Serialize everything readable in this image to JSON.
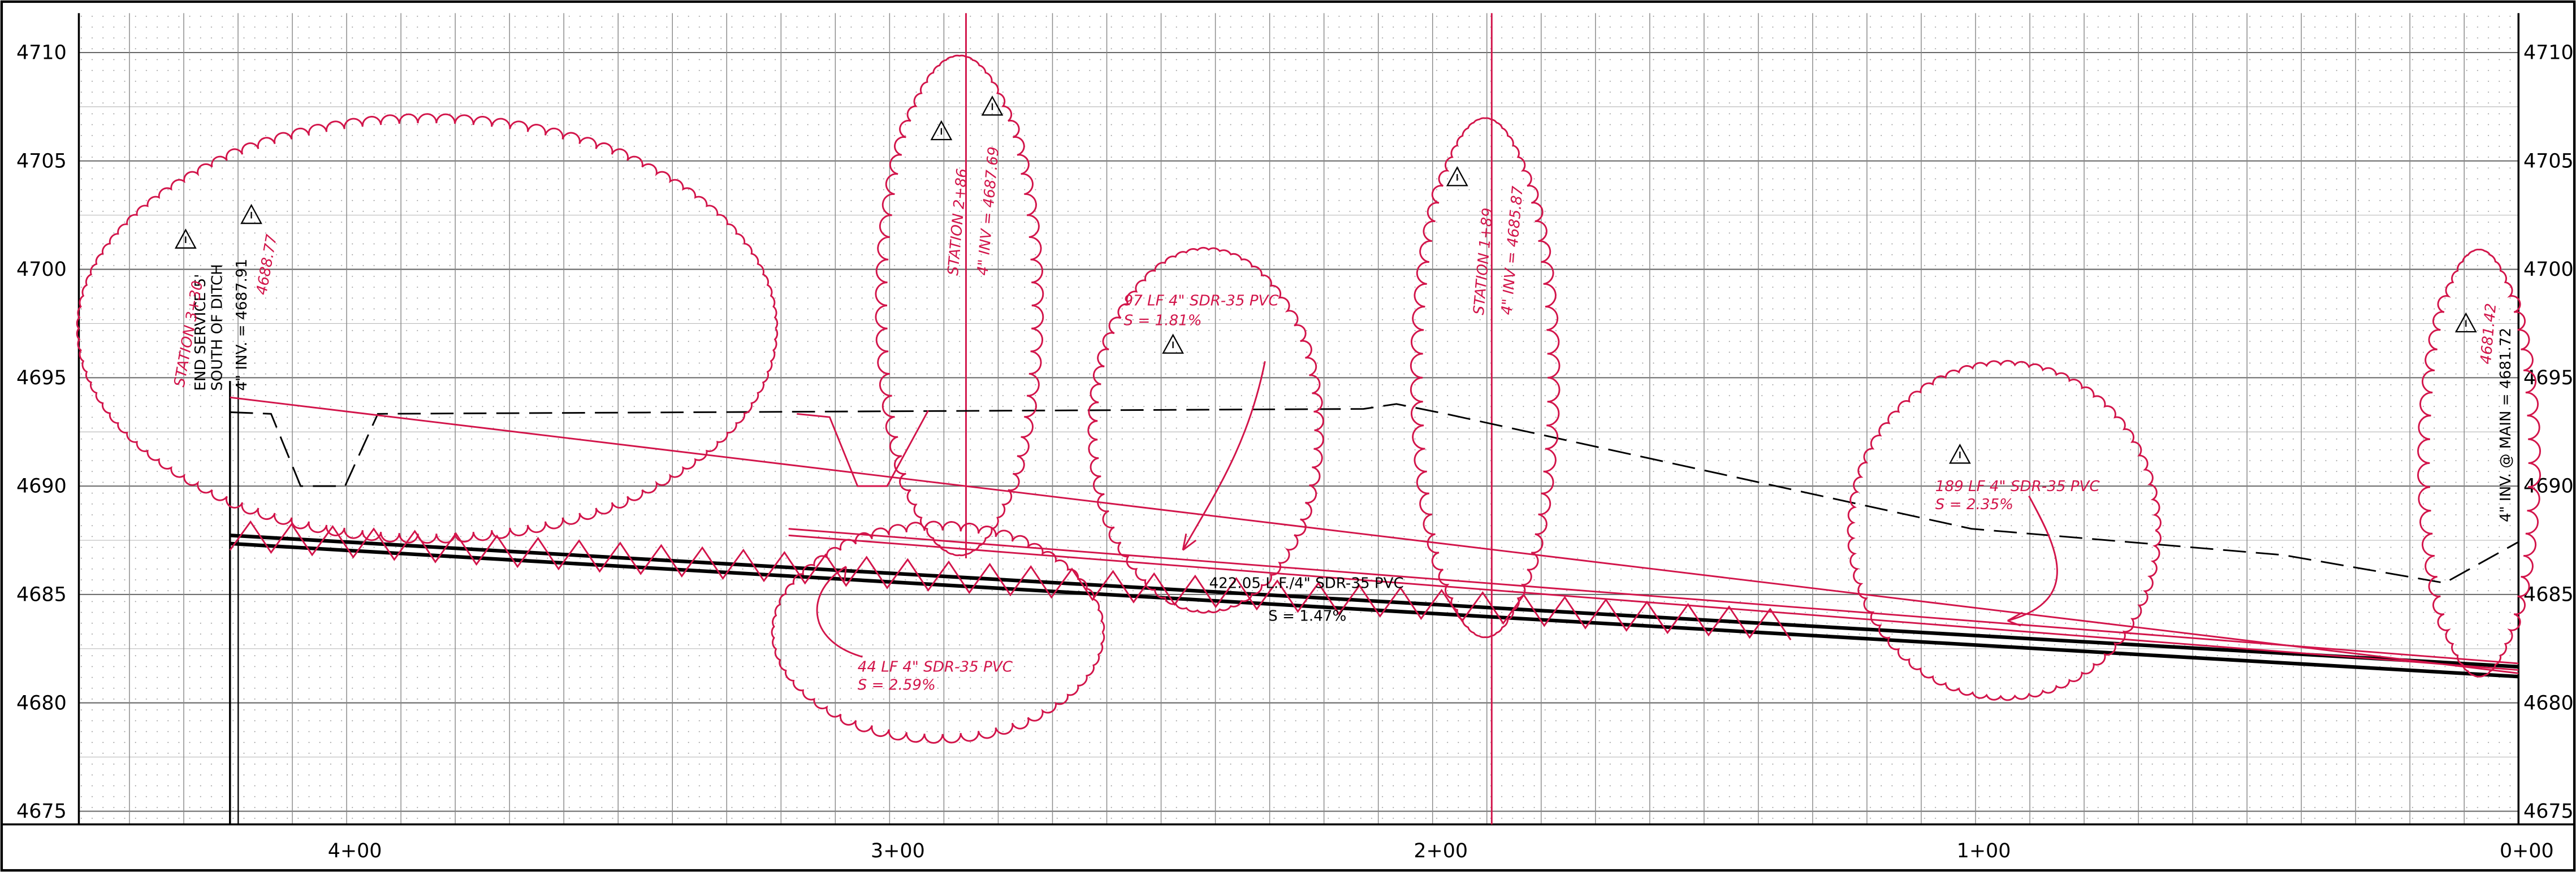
{
  "elevations": [
    4710,
    4705,
    4700,
    4695,
    4690,
    4685,
    4680,
    4675
  ],
  "stations": [
    "4+00",
    "3+00",
    "2+00",
    "1+00",
    "0+00"
  ],
  "annotations": {
    "end_service": [
      "END SERVICE 5'",
      "SOUTH OF DITCH",
      "4\" INV. = 4687.91"
    ],
    "station_330": [
      "STATION 3+30",
      "4688.77"
    ],
    "station_286": [
      "STATION 2+86",
      "4\" INV = 4687.69"
    ],
    "pipe_97": [
      "97 LF 4\" SDR-35 PVC",
      "S = 1.81%"
    ],
    "station_189": [
      "STATION 1+89",
      "4\" INV = 4685.87"
    ],
    "main_pipe": [
      "422.05 L.F./4\" SDR-35 PVC",
      "S = 1.47%"
    ],
    "pipe_44": [
      "44 LF 4\" SDR-35 PVC",
      "S = 2.59%"
    ],
    "pipe_189": [
      "189 LF 4\" SDR-35 PVC",
      "S = 2.35%"
    ],
    "main_inv": [
      "4\" INV. @ MAIN = 4681.72",
      "4681.42"
    ]
  }
}
